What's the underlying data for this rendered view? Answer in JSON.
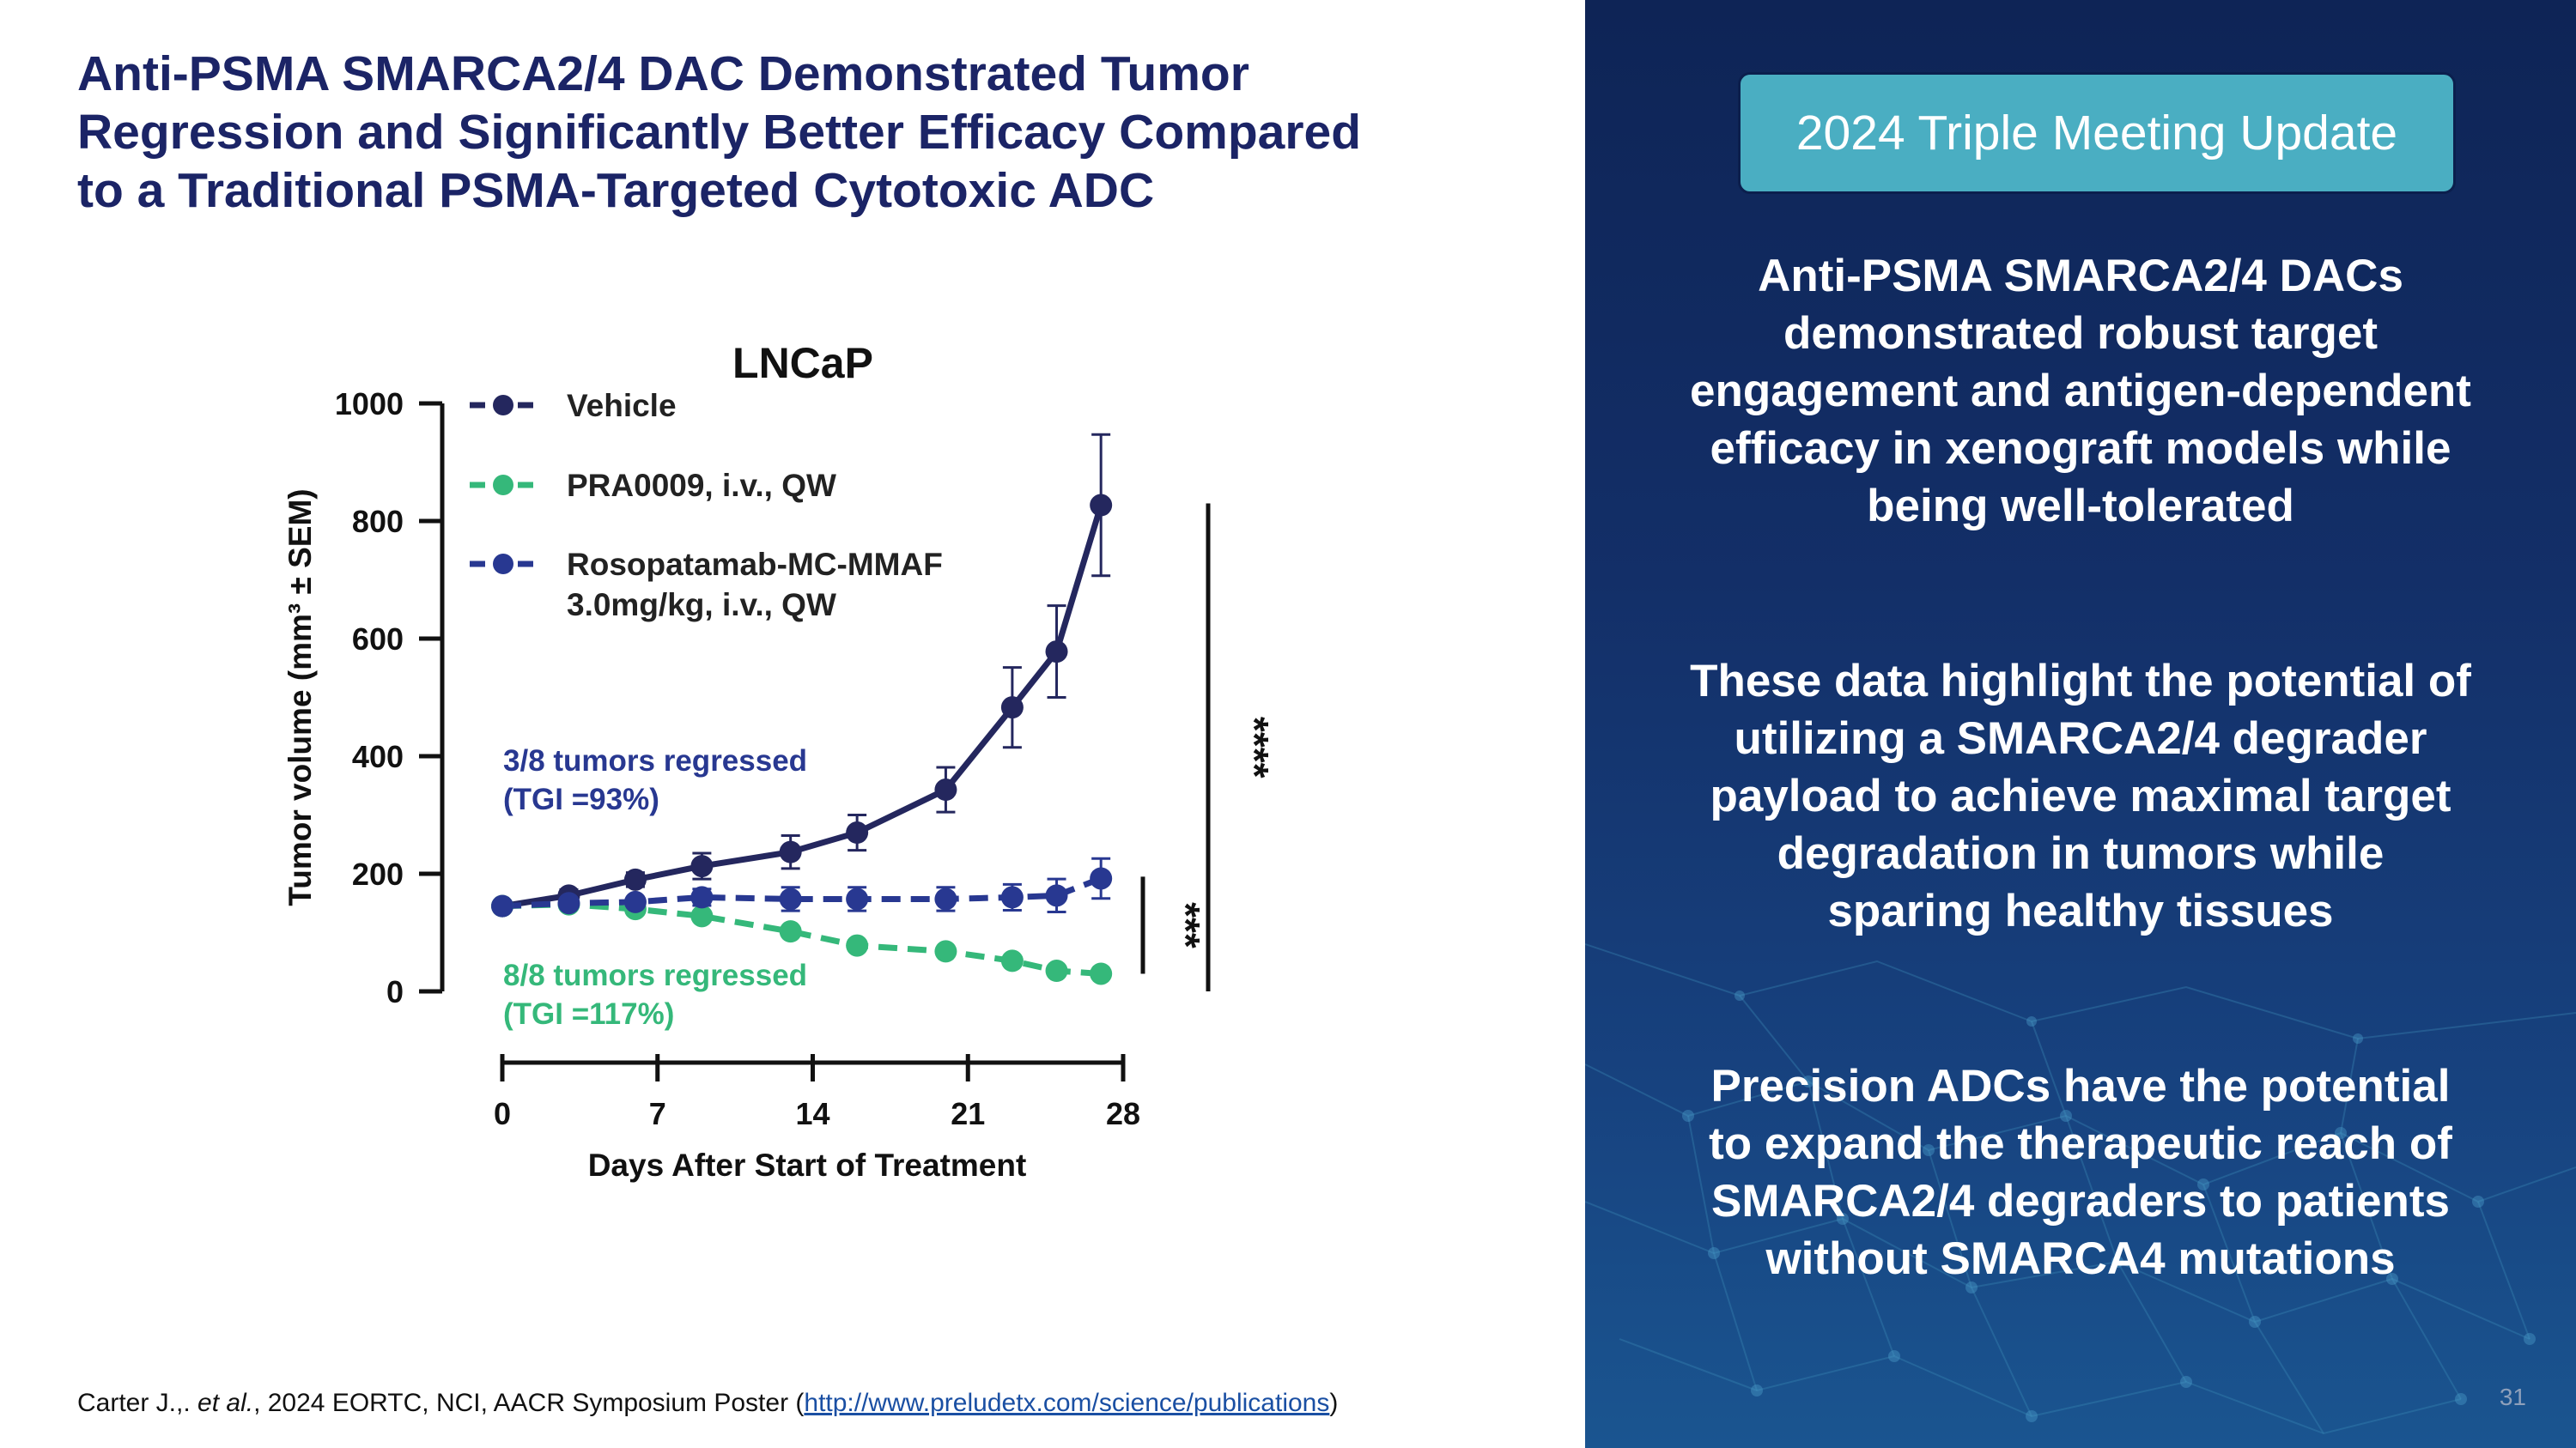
{
  "slide": {
    "title_lines": [
      "Anti-PSMA SMARCA2/4 DAC Demonstrated Tumor",
      "Regression and Significantly Better Efficacy Compared",
      "to a Traditional PSMA-Targeted Cytotoxic ADC"
    ],
    "citation": {
      "prefix": "Carter J.,. ",
      "etal": "et al.",
      "middle": ", 2024 EORTC, NCI, AACR Symposium Poster (",
      "link": "http://www.preludetx.com/science/publications",
      "suffix": ")"
    },
    "page_number": "31"
  },
  "panel": {
    "badge": "2024 Triple Meeting Update",
    "paragraphs": [
      [
        "Anti-PSMA SMARCA2/4 DACs",
        "demonstrated robust target",
        "engagement and antigen-dependent",
        "efficacy in xenograft models while",
        "being well-tolerated"
      ],
      [
        "These data highlight the potential of",
        "utilizing a SMARCA2/4 degrader",
        "payload to achieve maximal target",
        "degradation in tumors while",
        "sparing healthy tissues"
      ],
      [
        "Precision ADCs have the potential",
        "to expand the therapeutic reach of",
        "SMARCA2/4 degraders to patients",
        "without SMARCA4 mutations"
      ]
    ]
  },
  "chart_data": {
    "type": "line",
    "title": "LNCaP",
    "xlabel": "Days After Start of Treatment",
    "ylabel": "Tumor volume (mm³ ± SEM)",
    "xlim": [
      0,
      28
    ],
    "ylim": [
      0,
      1000
    ],
    "x_ticks": [
      0,
      7,
      14,
      21,
      28
    ],
    "y_ticks": [
      0,
      200,
      400,
      600,
      800,
      1000
    ],
    "grid": false,
    "legend_position": "top-left",
    "series": [
      {
        "name": "Vehicle",
        "color": "#24275e",
        "dashed": false,
        "x": [
          0,
          3,
          6,
          9,
          13,
          16,
          20,
          23,
          25,
          27
        ],
        "y": [
          145,
          163,
          190,
          213,
          237,
          270,
          343,
          483,
          578,
          827
        ],
        "err": [
          6,
          10,
          12,
          22,
          28,
          30,
          38,
          68,
          78,
          120
        ]
      },
      {
        "name": "PRA0009, i.v., QW",
        "color": "#35b87a",
        "dashed": true,
        "x": [
          0,
          3,
          6,
          9,
          13,
          16,
          20,
          23,
          25,
          27
        ],
        "y": [
          145,
          148,
          140,
          128,
          102,
          78,
          68,
          52,
          35,
          30
        ],
        "err": [
          4,
          4,
          5,
          5,
          5,
          5,
          5,
          5,
          4,
          4
        ]
      },
      {
        "name_lines": [
          "Rosopatamab-MC-MMAF",
          "3.0mg/kg, i.v., QW"
        ],
        "color": "#283891",
        "dashed": true,
        "x": [
          0,
          3,
          6,
          9,
          13,
          16,
          20,
          23,
          25,
          27
        ],
        "y": [
          145,
          150,
          152,
          160,
          157,
          157,
          157,
          160,
          163,
          192
        ],
        "err": [
          4,
          6,
          8,
          14,
          20,
          20,
          20,
          22,
          28,
          34
        ]
      }
    ],
    "annotations": [
      {
        "lines": [
          "3/8 tumors regressed",
          "(TGI =93%)"
        ],
        "color": "#283891"
      },
      {
        "lines": [
          "8/8 tumors regressed",
          "(TGI =117%)"
        ],
        "color": "#35b87a"
      }
    ],
    "significance": [
      {
        "label": "****",
        "from": 0,
        "to": 830
      },
      {
        "label": "***",
        "from": 30,
        "to": 195
      }
    ]
  }
}
